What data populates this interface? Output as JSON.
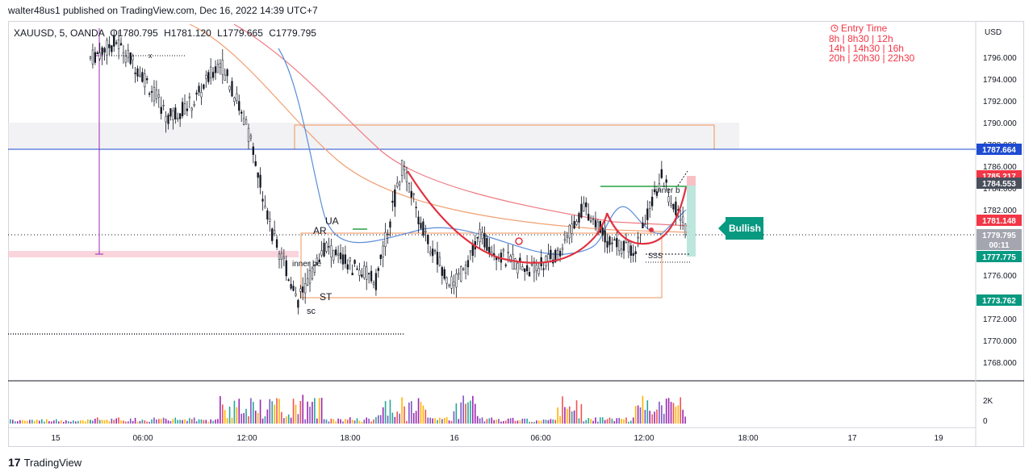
{
  "header": {
    "publisher_line": "walter48us1 published on TradingView.com, Dec 16, 2022 14:39 UTC+7"
  },
  "legend": {
    "symbol": "XAUUSD, 5, OANDA",
    "open": "O1780.795",
    "high": "H1781.120",
    "low": "L1779.665",
    "close": "C1779.795"
  },
  "entry_time": {
    "title": "Entry Time",
    "lines": [
      "8h | 8h30 | 12h",
      "14h | 14h30 | 16h",
      "20h | 20h30 | 22h30"
    ],
    "color": "#f23645"
  },
  "price_axis": {
    "currency": "USD",
    "ticks": [
      "1796.000",
      "1794.000",
      "1792.000",
      "1790.000",
      "1788.000",
      "1786.000",
      "1784.000",
      "1782.000",
      "1780.000",
      "1778.000",
      "1776.000",
      "1774.000",
      "1772.000",
      "1770.000",
      "1768.000"
    ]
  },
  "price_badges": [
    {
      "label": "1787.664",
      "color": "#1e4bd2"
    },
    {
      "label": "1785.217",
      "color": "#f23645"
    },
    {
      "label": "1784.553",
      "color": "#4a4f5c"
    },
    {
      "label": "1781.148",
      "color": "#f23645"
    },
    {
      "label": "1779.795",
      "color": "#a3a6af"
    },
    {
      "label": "00:11",
      "color": "#a3a6af"
    },
    {
      "label": "1777.775",
      "color": "#089981"
    },
    {
      "label": "1773.762",
      "color": "#089981"
    }
  ],
  "volume_axis": {
    "ticks": [
      "2K",
      "0"
    ]
  },
  "time_axis": {
    "ticks": [
      "15",
      "06:00",
      "12:00",
      "18:00",
      "16",
      "06:00",
      "12:00",
      "18:00",
      "17",
      "19"
    ]
  },
  "annotations": {
    "bullish": "Bullish",
    "ua": "UA",
    "ar": "AR",
    "st": "ST",
    "sc": "sc",
    "inner_left": "inner be",
    "inner_right": "inner b",
    "sss": "SSS",
    "x_mark": "x"
  },
  "chart_data": {
    "type": "candlestick",
    "symbol": "XAUUSD",
    "interval": "5",
    "exchange": "OANDA",
    "currency": "USD",
    "ylim": [
      1766.6,
      1797.6
    ],
    "x_categories": [
      "15",
      "06:00",
      "12:00",
      "18:00",
      "16",
      "06:00",
      "12:00",
      "18:00",
      "17",
      "19"
    ],
    "price_path": [
      {
        "time": "15 03:00",
        "price": 1796.0
      },
      {
        "time": "15 09:00",
        "price": 1797.5
      },
      {
        "time": "15 10:30",
        "price": 1794.5
      },
      {
        "time": "15 11:30",
        "price": 1790.5
      },
      {
        "time": "15 12:30",
        "price": 1792.0
      },
      {
        "time": "15 14:00",
        "price": 1795.8
      },
      {
        "time": "15 15:00",
        "price": 1790.0
      },
      {
        "time": "15 15:30",
        "price": 1780.0
      },
      {
        "time": "15 16:00",
        "price": 1773.8
      },
      {
        "time": "15 17:00",
        "price": 1778.5
      },
      {
        "time": "15 19:00",
        "price": 1777.0
      },
      {
        "time": "15 21:00",
        "price": 1775.5
      },
      {
        "time": "15 22:00",
        "price": 1786.0
      },
      {
        "time": "15 23:30",
        "price": 1779.0
      },
      {
        "time": "16 00:30",
        "price": 1775.0
      },
      {
        "time": "16 02:00",
        "price": 1779.5
      },
      {
        "time": "16 04:00",
        "price": 1777.5
      },
      {
        "time": "16 06:00",
        "price": 1776.5
      },
      {
        "time": "16 08:00",
        "price": 1778.0
      },
      {
        "time": "16 09:30",
        "price": 1782.5
      },
      {
        "time": "16 11:00",
        "price": 1779.0
      },
      {
        "time": "16 12:30",
        "price": 1778.5
      },
      {
        "time": "16 14:00",
        "price": 1785.0
      },
      {
        "time": "16 14:39",
        "price": 1779.8
      }
    ],
    "levels": [
      {
        "name": "horizontal",
        "price": 1787.664
      },
      {
        "name": "resistance-top",
        "price": 1784.553
      },
      {
        "name": "box-top",
        "price": 1790.0
      },
      {
        "name": "box-bottom",
        "price": 1773.8
      }
    ]
  }
}
